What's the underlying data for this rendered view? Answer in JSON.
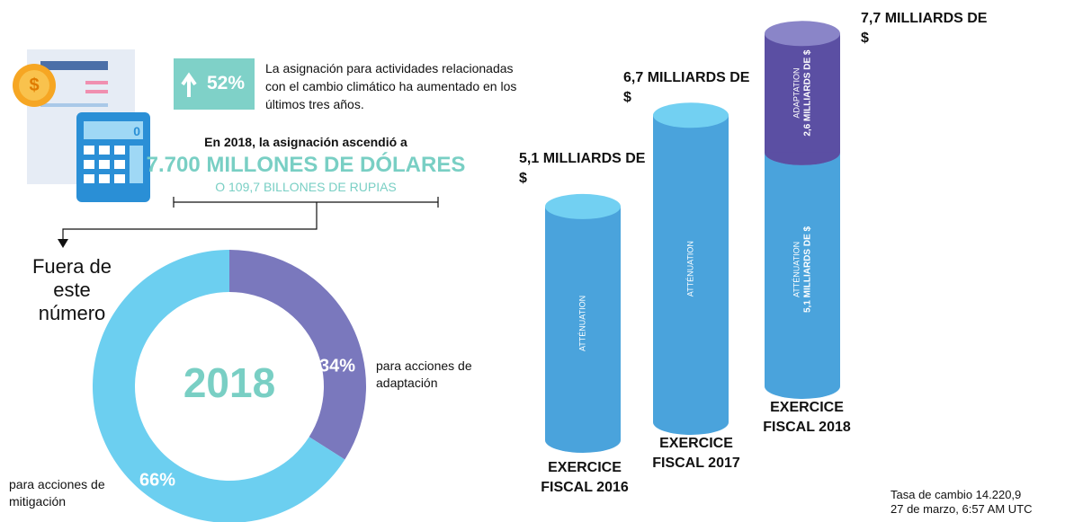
{
  "header": {
    "badge": "52%",
    "text": "La asignación para actividades relacionadas con el cambio climático ha aumentado en los últimos tres años.",
    "calculator_display": "0"
  },
  "highlight": {
    "intro": "En 2018, la asignación ascendió a",
    "amount": "7.700 MILLONES DE DÓLARES",
    "rupiah": "O 109,7 BILLONES DE RUPIAS"
  },
  "pointer_text": "Fuera de este número",
  "chart_data": [
    {
      "type": "pie",
      "center_label": "2018",
      "categories": [
        "para acciones de adaptación",
        "para acciones de mitigación"
      ],
      "values": [
        34,
        66
      ],
      "value_labels": [
        "34%",
        "66%"
      ],
      "colors": [
        "#7a78bd",
        "#6ccff0"
      ]
    },
    {
      "type": "bar",
      "stacked": true,
      "categories": [
        "EXERCICE FISCAL 2016",
        "EXERCICE FISCAL 2017",
        "EXERCICE FISCAL 2018"
      ],
      "total_labels": [
        "5,1 MILLIARDS DE $",
        "6,7 MILLIARDS DE $",
        "7,7 MILLIARDS DE $"
      ],
      "series": [
        {
          "name": "ATTÉNUATION",
          "color": "#4aa3dc",
          "top_color": "#72d0f2",
          "values": [
            5.1,
            6.7,
            5.1
          ],
          "value_labels": [
            null,
            null,
            "5,1 MILLIARDS DE $"
          ]
        },
        {
          "name": "ADAPTATION",
          "color": "#5b4fa3",
          "top_color": "#8a85c8",
          "values": [
            null,
            null,
            2.6
          ],
          "value_labels": [
            null,
            null,
            "2,6 MILLIARDS DE $"
          ]
        }
      ]
    }
  ],
  "footnote": {
    "rate": "Tasa de cambio 14.220,9",
    "date": "27 de marzo, 6:57 AM UTC"
  }
}
